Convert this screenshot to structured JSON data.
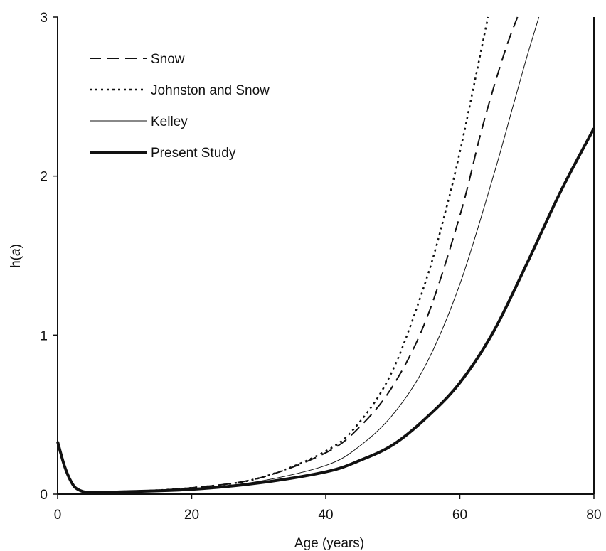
{
  "chart_data": {
    "type": "line",
    "xlabel": "Age (years)",
    "ylabel_prefix": "h(",
    "ylabel_var": "a",
    "ylabel_suffix": ")",
    "xlim": [
      0,
      80
    ],
    "ylim": [
      0,
      3
    ],
    "x_ticks": [
      0,
      20,
      40,
      60,
      80
    ],
    "y_ticks": [
      0,
      1,
      2,
      3
    ],
    "grid": false,
    "legend_position": "top-left",
    "series": [
      {
        "name": "Snow",
        "style": "dashed",
        "x": [
          0,
          1,
          2,
          3,
          5,
          10,
          20,
          30,
          40,
          45,
          50,
          55,
          60,
          63,
          65,
          67,
          68.6
        ],
        "y": [
          0.33,
          0.18,
          0.08,
          0.03,
          0.01,
          0.015,
          0.04,
          0.1,
          0.26,
          0.42,
          0.68,
          1.1,
          1.75,
          2.25,
          2.55,
          2.82,
          3.0
        ]
      },
      {
        "name": "Johnston and Snow",
        "style": "dotted",
        "x": [
          0,
          1,
          2,
          3,
          5,
          10,
          20,
          30,
          40,
          45,
          50,
          55,
          58,
          60,
          62,
          64.2
        ],
        "y": [
          0.33,
          0.18,
          0.08,
          0.03,
          0.01,
          0.015,
          0.04,
          0.1,
          0.27,
          0.45,
          0.78,
          1.35,
          1.8,
          2.15,
          2.55,
          3.0
        ]
      },
      {
        "name": "Kelley",
        "style": "thin",
        "x": [
          0,
          1,
          2,
          3,
          5,
          10,
          20,
          30,
          40,
          45,
          50,
          55,
          60,
          65,
          68,
          70,
          71.8
        ],
        "y": [
          0.33,
          0.18,
          0.08,
          0.03,
          0.01,
          0.015,
          0.035,
          0.08,
          0.18,
          0.3,
          0.5,
          0.82,
          1.32,
          2.0,
          2.45,
          2.75,
          3.0
        ]
      },
      {
        "name": "Present Study",
        "style": "thick",
        "x": [
          0,
          1,
          2,
          3,
          5,
          10,
          20,
          30,
          40,
          45,
          50,
          55,
          60,
          65,
          70,
          75,
          80
        ],
        "y": [
          0.33,
          0.18,
          0.08,
          0.03,
          0.01,
          0.015,
          0.03,
          0.07,
          0.14,
          0.21,
          0.31,
          0.48,
          0.7,
          1.02,
          1.45,
          1.9,
          2.3
        ]
      }
    ]
  }
}
